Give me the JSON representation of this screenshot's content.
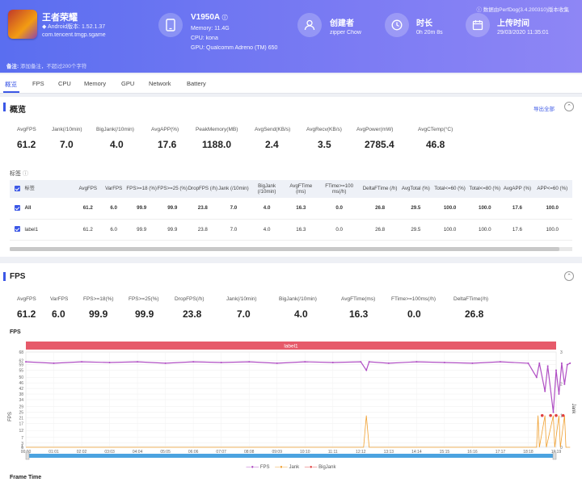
{
  "app": {
    "name": "王者荣耀",
    "os": "Android版本: 1.52.1.37",
    "package": "com.tencent.tmgp.sgame"
  },
  "device": {
    "model": "V1950A",
    "memory": "Memory: 11.4G",
    "cpu": "CPU: kona",
    "gpu": "GPU: Qualcomm Adreno (TM) 650"
  },
  "creator": {
    "label": "创建者",
    "value": "zipper Chow"
  },
  "duration": {
    "label": "时长",
    "value": "0h 20m 8s"
  },
  "upload": {
    "label": "上传时间",
    "value": "29/03/2020 11:35:01"
  },
  "perfdog_text": "数据由PerfDog(3.4.200310)版本收集",
  "note": {
    "label": "备注:",
    "placeholder": "添加备注，不超过200个字符"
  },
  "tabs": [
    "概览",
    "FPS",
    "CPU",
    "Memory",
    "GPU",
    "Network",
    "Battery"
  ],
  "overview": {
    "title": "概览",
    "export": "导出全部",
    "stats": [
      {
        "label": "AvgFPS",
        "value": "61.2"
      },
      {
        "label": "Jank(/10min)",
        "value": "7.0"
      },
      {
        "label": "BigJank(/10min)",
        "value": "4.0"
      },
      {
        "label": "AvgAPP(%)",
        "value": "17.6"
      },
      {
        "label": "PeakMemory(MB)",
        "value": "1188.0"
      },
      {
        "label": "AvgSend(KB/s)",
        "value": "2.4"
      },
      {
        "label": "AvgRecv(KB/s)",
        "value": "3.5"
      },
      {
        "label": "AvgPower(mW)",
        "value": "2785.4"
      },
      {
        "label": "AvgCTemp(°C)",
        "value": "46.8"
      }
    ],
    "label_title": "标签",
    "table": {
      "headers": [
        "",
        "标签",
        "AvgFPS",
        "VarFPS",
        "FPS>=18 (%)",
        "FPS>=25 (%)",
        "DropFPS (/h)",
        "Jank (/10min)",
        "BigJank (/10min)",
        "AvgFTime (ms)",
        "FTime>=100 ms(/h)",
        "DeltaFTime (/h)",
        "AvgTotal (%)",
        "Total<=60 (%)",
        "Total<=80 (%)",
        "AvgAPP (%)",
        "APP<=60 (%)"
      ],
      "rows": [
        [
          "",
          "All",
          "61.2",
          "6.0",
          "99.9",
          "99.9",
          "23.8",
          "7.0",
          "4.0",
          "16.3",
          "0.0",
          "26.8",
          "29.5",
          "100.0",
          "100.0",
          "17.6",
          "100.0"
        ],
        [
          "",
          "label1",
          "61.2",
          "6.0",
          "99.9",
          "99.9",
          "23.8",
          "7.0",
          "4.0",
          "16.3",
          "0.0",
          "26.8",
          "29.5",
          "100.0",
          "100.0",
          "17.6",
          "100.0"
        ]
      ]
    }
  },
  "fps_section": {
    "title": "FPS",
    "stats": [
      {
        "label": "AvgFPS",
        "value": "61.2"
      },
      {
        "label": "VarFPS",
        "value": "6.0"
      },
      {
        "label": "FPS>=18(%)",
        "value": "99.9"
      },
      {
        "label": "FPS>=25(%)",
        "value": "99.9"
      },
      {
        "label": "DropFPS(/h)",
        "value": "23.8"
      },
      {
        "label": "Jank(/10min)",
        "value": "7.0"
      },
      {
        "label": "BigJank(/10min)",
        "value": "4.0"
      },
      {
        "label": "AvgFTime(ms)",
        "value": "16.3"
      },
      {
        "label": "FTime>=100ms(/h)",
        "value": "0.0"
      },
      {
        "label": "DeltaFTime(/h)",
        "value": "26.8"
      }
    ],
    "frame_time_label": "Frame Time"
  },
  "chart_data": {
    "type": "line",
    "title": "FPS",
    "band_label": "label1",
    "x_labels": [
      "00:00",
      "01:01",
      "02:02",
      "03:03",
      "04:04",
      "05:05",
      "06:06",
      "07:07",
      "08:08",
      "09:09",
      "10:10",
      "11:11",
      "12:12",
      "13:13",
      "14:14",
      "15:15",
      "16:16",
      "17:17",
      "18:18",
      "19:19"
    ],
    "y_ticks": [
      0,
      1,
      3,
      7,
      12,
      17,
      21,
      25,
      29,
      34,
      38,
      42,
      46,
      50,
      55,
      59,
      62,
      68
    ],
    "ylabel": "FPS",
    "y2_ticks": [
      0,
      1,
      2,
      3
    ],
    "y2label": "Jank",
    "ylim": [
      0,
      68
    ],
    "y2lim": [
      0,
      3
    ],
    "legend": [
      "FPS",
      "Jank",
      "BigJank"
    ],
    "colors": {
      "FPS": "#b04fc4",
      "Jank": "#f0a030",
      "BigJank": "#e04040"
    },
    "series": [
      {
        "name": "FPS",
        "points": [
          [
            0,
            61
          ],
          [
            1,
            60
          ],
          [
            2,
            61
          ],
          [
            3,
            60.5
          ],
          [
            4,
            61
          ],
          [
            5,
            60
          ],
          [
            6,
            61
          ],
          [
            7,
            60.5
          ],
          [
            8,
            61
          ],
          [
            9,
            60
          ],
          [
            10,
            61
          ],
          [
            11,
            60.5
          ],
          [
            12,
            61
          ],
          [
            12.2,
            55
          ],
          [
            12.3,
            61
          ],
          [
            13,
            60
          ],
          [
            14,
            61
          ],
          [
            15,
            60.5
          ],
          [
            16,
            60
          ],
          [
            17,
            61
          ],
          [
            18,
            60
          ],
          [
            18.3,
            50
          ],
          [
            18.4,
            60
          ],
          [
            18.6,
            40
          ],
          [
            18.7,
            58
          ],
          [
            18.9,
            25
          ],
          [
            19.0,
            55
          ],
          [
            19.1,
            38
          ],
          [
            19.2,
            60
          ],
          [
            19.3,
            45
          ],
          [
            19.4,
            59
          ],
          [
            19.5,
            60
          ]
        ]
      },
      {
        "name": "Jank",
        "points": [
          [
            0,
            0
          ],
          [
            12.1,
            0
          ],
          [
            12.2,
            1
          ],
          [
            12.3,
            0
          ],
          [
            18.3,
            0
          ],
          [
            18.35,
            1
          ],
          [
            18.4,
            0
          ],
          [
            18.6,
            1
          ],
          [
            18.65,
            0
          ],
          [
            18.9,
            1
          ],
          [
            18.95,
            0
          ],
          [
            19.1,
            1
          ],
          [
            19.15,
            0
          ],
          [
            19.3,
            1
          ],
          [
            19.35,
            0
          ],
          [
            19.5,
            0
          ]
        ]
      },
      {
        "name": "BigJank",
        "points": [
          [
            18.5,
            1
          ],
          [
            18.8,
            1
          ],
          [
            19.0,
            1
          ],
          [
            19.25,
            1
          ]
        ]
      }
    ]
  }
}
